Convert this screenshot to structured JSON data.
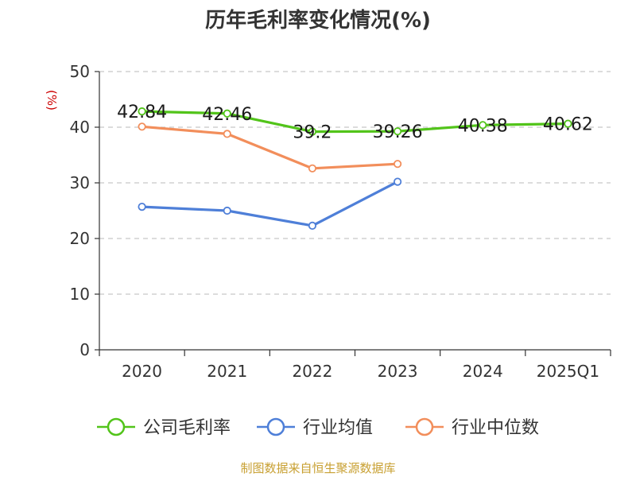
{
  "chart_data": {
    "type": "line",
    "title": "历年毛利率变化情况(%)",
    "ylabel": "(%)",
    "xlabel": "",
    "categories": [
      "2020",
      "2021",
      "2022",
      "2023",
      "2024",
      "2025Q1"
    ],
    "ylim": [
      0,
      50
    ],
    "yticks": [
      0,
      10,
      20,
      30,
      40,
      50
    ],
    "grid": true,
    "legend_position": "bottom",
    "series": [
      {
        "name": "公司毛利率",
        "color": "#52c41a",
        "values": [
          42.84,
          42.46,
          39.2,
          39.26,
          40.38,
          40.62
        ],
        "labels": [
          "42.84",
          "42.46",
          "39.2",
          "39.26",
          "40.38",
          "40.62"
        ]
      },
      {
        "name": "行业均值",
        "color": "#4e7fd8",
        "values": [
          25.7,
          25.0,
          22.3,
          30.2,
          null,
          null
        ]
      },
      {
        "name": "行业中位数",
        "color": "#f28e5b",
        "values": [
          40.1,
          38.8,
          32.6,
          33.4,
          null,
          null
        ]
      }
    ]
  },
  "footer": {
    "source": "制图数据来自恒生聚源数据库"
  }
}
